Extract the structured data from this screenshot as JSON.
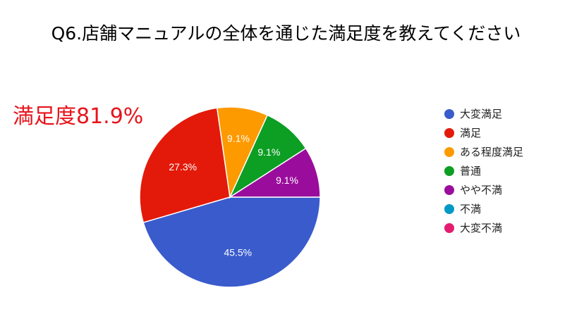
{
  "chart_data": {
    "type": "pie",
    "title": "Q6.店舗マニュアルの全体を通じた満足度を教えてください",
    "annotation": "満足度81.9%",
    "legend_position": "right",
    "slices": [
      {
        "name": "大変満足",
        "value": 45.5,
        "label": "45.5%",
        "color": "#3a5bcc"
      },
      {
        "name": "満足",
        "value": 27.3,
        "label": "27.3%",
        "color": "#e31a0a"
      },
      {
        "name": "ある程度満足",
        "value": 9.1,
        "label": "9.1%",
        "color": "#fd9a00"
      },
      {
        "name": "普通",
        "value": 9.1,
        "label": "9.1%",
        "color": "#0d9e24"
      },
      {
        "name": "やや不満",
        "value": 9.1,
        "label": "9.1%",
        "color": "#9a0d9c"
      },
      {
        "name": "不満",
        "value": 0,
        "label": "",
        "color": "#0099c6"
      },
      {
        "name": "大変不満",
        "value": 0,
        "label": "",
        "color": "#e41c6f"
      }
    ]
  }
}
